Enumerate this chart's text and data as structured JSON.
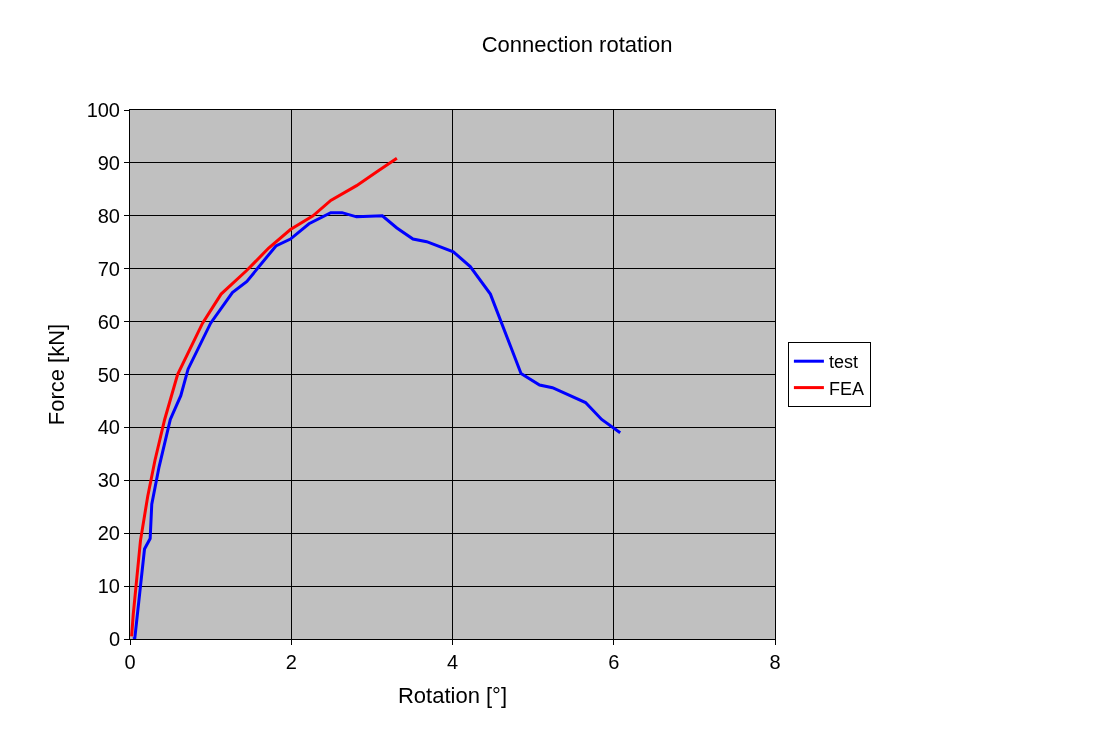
{
  "chart_data": {
    "type": "line",
    "title": "Connection rotation",
    "xlabel": "Rotation [°]",
    "ylabel": "Force [kN]",
    "xlim": [
      0,
      8
    ],
    "xticks": [
      0,
      2,
      4,
      6,
      8
    ],
    "ylim": [
      0,
      100
    ],
    "yticks": [
      0,
      10,
      20,
      30,
      40,
      50,
      60,
      70,
      80,
      90,
      100
    ],
    "grid": true,
    "legend": "right",
    "marker": "none",
    "line_style": "solid",
    "series": [
      {
        "name": "test",
        "color": "#0000ff",
        "x": [
          0.04,
          0.06,
          0.18,
          0.25,
          0.27,
          0.36,
          0.5,
          0.63,
          0.72,
          1.0,
          1.27,
          1.45,
          1.81,
          1.99,
          2.22,
          2.49,
          2.63,
          2.81,
          3.13,
          3.31,
          3.51,
          3.68,
          4.01,
          4.22,
          4.47,
          4.85,
          5.08,
          5.24,
          5.65,
          5.85,
          6.08
        ],
        "values": [
          0,
          0.2,
          17,
          19,
          25.5,
          32.5,
          41.5,
          46,
          51,
          59.7,
          65.5,
          67.6,
          74.3,
          75.6,
          78.5,
          80.6,
          80.6,
          79.8,
          80,
          77.7,
          75.6,
          75.1,
          73.2,
          70.4,
          65.2,
          50.2,
          48,
          47.5,
          44.7,
          41.5,
          39
        ]
      },
      {
        "name": "FEA",
        "color": "#ff0000",
        "x": [
          0.02,
          0.04,
          0.13,
          0.22,
          0.31,
          0.43,
          0.59,
          0.9,
          1.13,
          1.45,
          1.72,
          1.99,
          2.27,
          2.49,
          2.81,
          3.08,
          3.31
        ],
        "values": [
          0.5,
          4.6,
          18.6,
          27,
          33.8,
          41.5,
          50,
          59.7,
          65.2,
          69.7,
          73.9,
          77.4,
          80,
          82.9,
          85.7,
          88.5,
          90.9
        ]
      }
    ]
  }
}
